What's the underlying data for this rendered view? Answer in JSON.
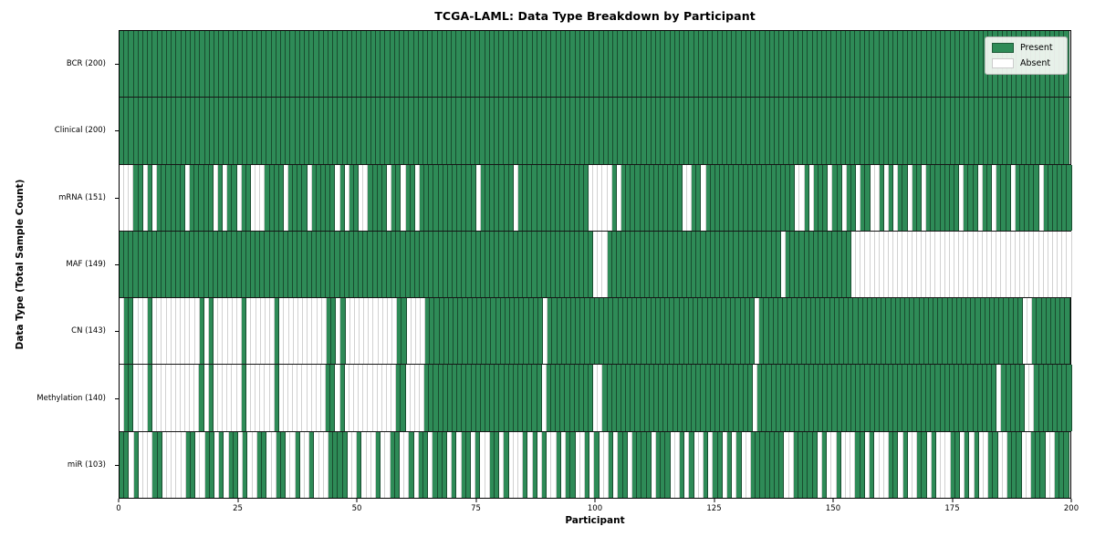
{
  "chart_data": {
    "type": "heatmap",
    "title": "TCGA-LAML: Data Type Breakdown by Participant",
    "xlabel": "Participant",
    "ylabel": "Data Type (Total Sample Count)",
    "x_ticks": [
      0,
      25,
      50,
      75,
      100,
      125,
      150,
      175,
      200
    ],
    "x_range": [
      0,
      200
    ],
    "n_participants": 200,
    "grid": "per-cell vertical dividers, black row separators",
    "legend_position": "upper right",
    "present_color": "#2e8b57",
    "absent_color": "#ffffff",
    "legend_items": [
      {
        "label": "Present",
        "color": "#2e8b57"
      },
      {
        "label": "Absent",
        "color": "#ffffff"
      }
    ],
    "rows": [
      {
        "label": "BCR (200)",
        "present_count": 200,
        "pattern": "11111111111111111111111111111111111111111111111111111111111111111111111111111111111111111111111111111111111111111111111111111111111111111111111111111111111111111111111111111111111111111111111111111111"
      },
      {
        "label": "Clinical (200)",
        "present_count": 200,
        "pattern": "11111111111111111111111111111111111111111111111111111111111111111111111111111111111111111111111111111111111111111111111111111111111111111111111111111111111111111111111111111111111111111111111111111111"
      },
      {
        "label": "mRNA (151)",
        "present_count": 151,
        "pattern": "00011010111111011111010110110001111011110111110101100111101101101111111111110111111101111111111111110000010111111111111100110111111111111111111100101110110110110010101101101111111011101101110111110111111"
      },
      {
        "label": "MAF (149)",
        "present_count": 149,
        "pattern": "11111111111111111111111111111111111111111111111111111111111111111111111111111111111111111111111111111000111111111111111111111111111111111111101111111111111100000000000000000000000000000000000000000000000"
      },
      {
        "label": "CN (143)",
        "present_count": 143,
        "pattern": "01100010000000000101000000100000010000000000110100000000000110000111111111111111111111111101111111111111111111111111111111111111111111101111111111111111111111111111111111111111111111111111111100111111 11"
      },
      {
        "label": "Methylation (140)",
        "present_count": 140,
        "pattern": "01100010000000000101000000100000010000000000110100000000000110000111111111111111111111111101111111111001111111111111111111111111111111101111111111111111111111111111111111111111111111111110111110011111111"
      },
      {
        "label": "miR (103)",
        "present_count": 103,
        "pattern": "11010001100000110011010110100110011001001000111100100010011001011011101011010011010001010100101100101001011011110111001010010110101001111111001111101001000110100011010011010001101010011001110011100111"
      }
    ]
  }
}
